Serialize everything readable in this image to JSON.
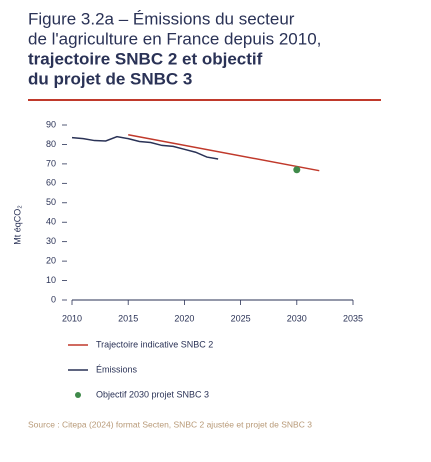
{
  "chart_data": {
    "type": "line",
    "title": [
      "Figure 3.2a – Émissions du secteur",
      "de l'agriculture en France depuis 2010,"
    ],
    "title_bold": [
      "trajectoire SNBC 2 et objectif",
      "du projet de SNBC 3"
    ],
    "ylabel": "Mt éqCO₂",
    "xlim": [
      2010,
      2035
    ],
    "xticks": [
      2010,
      2015,
      2020,
      2025,
      2030,
      2035
    ],
    "ylim": [
      0,
      90
    ],
    "yticks": [
      0,
      10,
      20,
      30,
      40,
      50,
      60,
      70,
      80,
      90
    ],
    "series": [
      {
        "name": "Trajectoire indicative SNBC 2",
        "color": "#c0392b",
        "style": "line",
        "x": [
          2015,
          2032
        ],
        "values": [
          85,
          66.5
        ]
      },
      {
        "name": "Émissions",
        "color": "#2a3256",
        "style": "line",
        "x": [
          2010,
          2011,
          2012,
          2013,
          2014,
          2015,
          2016,
          2017,
          2018,
          2019,
          2020,
          2021,
          2022,
          2023
        ],
        "values": [
          83.5,
          83,
          82,
          81.8,
          84,
          83,
          81.5,
          81,
          79.5,
          79,
          77.5,
          76,
          73.5,
          72.5
        ]
      },
      {
        "name": "Objectif 2030 projet SNBC 3",
        "color": "#3f8a4a",
        "style": "point",
        "x": [
          2030
        ],
        "values": [
          67
        ]
      }
    ],
    "source": "Source : Citepa (2024) format Secten, SNBC 2 ajustée et projet de SNBC 3"
  }
}
